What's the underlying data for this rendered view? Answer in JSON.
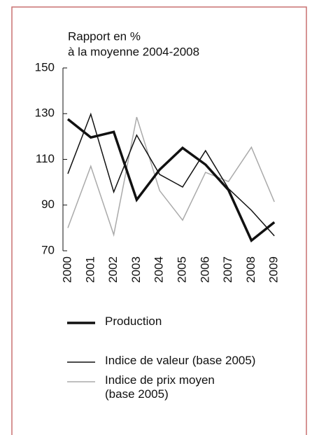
{
  "chart_data": {
    "type": "line",
    "title": [
      "Rapport en %",
      "à la moyenne 2004-2008"
    ],
    "categories": [
      "2000",
      "2001",
      "2002",
      "2003",
      "2004",
      "2005",
      "2006",
      "2007",
      "2008",
      "2009"
    ],
    "series": [
      {
        "name": "Production",
        "color": "#111111",
        "width": 3.5,
        "values": [
          127.6,
          119.6,
          122,
          92.3,
          105.5,
          115,
          107.7,
          96.6,
          74.5,
          82.5
        ]
      },
      {
        "name": "Indice de valeur (base 2005)",
        "color": "#111111",
        "width": 1.5,
        "values": [
          103.7,
          129.8,
          95.7,
          120.6,
          103.4,
          97.9,
          113.8,
          97.2,
          87.7,
          76.5
        ]
      },
      {
        "name": "Indice de prix moyen (base 2005)",
        "color": "#aaaaaa",
        "width": 1.5,
        "values": [
          80,
          107,
          77,
          128.5,
          96.3,
          83.4,
          104.3,
          100.3,
          115.3,
          91.4
        ]
      }
    ],
    "ylim": [
      70,
      150
    ],
    "yticks": [
      70,
      90,
      110,
      130,
      150
    ],
    "grid": false
  }
}
